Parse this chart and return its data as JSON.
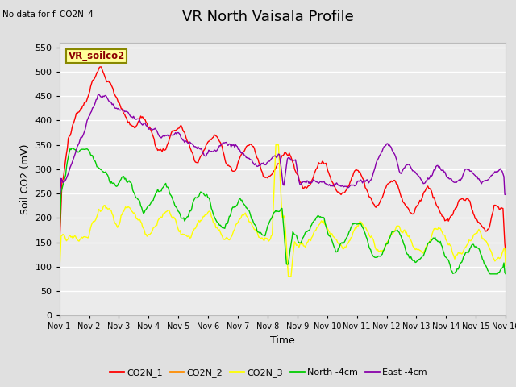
{
  "title": "VR North Vaisala Profile",
  "subtitle": "No data for f_CO2N_4",
  "xlabel": "Time",
  "ylabel": "Soil CO2 (mV)",
  "sensor_label": "VR_soilco2",
  "ylim": [
    0,
    560
  ],
  "yticks": [
    0,
    50,
    100,
    150,
    200,
    250,
    300,
    350,
    400,
    450,
    500,
    550
  ],
  "xlim": [
    0,
    15
  ],
  "xtick_labels": [
    "Nov 1",
    "Nov 2",
    "Nov 3",
    "Nov 4",
    "Nov 5",
    "Nov 6",
    "Nov 7",
    "Nov 8",
    "Nov 9",
    "Nov 10",
    "Nov 11",
    "Nov 12",
    "Nov 13",
    "Nov 14",
    "Nov 15",
    "Nov 16"
  ],
  "colors": {
    "CO2N_1": "#ff0000",
    "CO2N_2": "#ff8c00",
    "CO2N_3": "#ffff00",
    "North": "#00cc00",
    "East": "#8800aa"
  },
  "bg_color": "#e0e0e0",
  "plot_bg": "#ebebeb",
  "grid_color": "#ffffff",
  "title_fontsize": 13,
  "label_fontsize": 9,
  "tick_fontsize": 8,
  "sensor_label_color": "#8B0000",
  "sensor_box_facecolor": "#ffff99",
  "sensor_box_edgecolor": "#888800"
}
